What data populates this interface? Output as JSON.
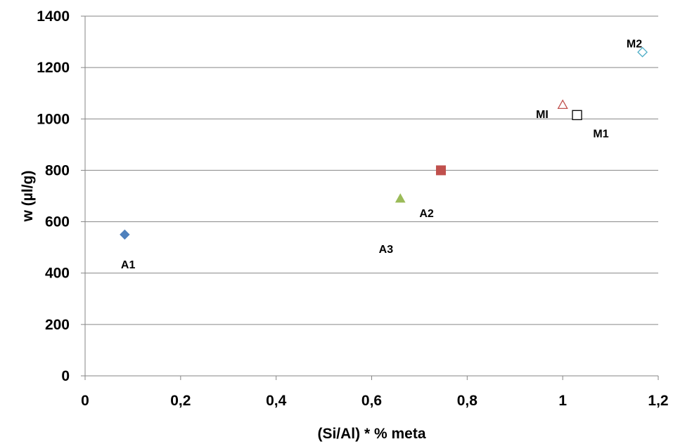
{
  "chart_data": {
    "type": "scatter",
    "title": "",
    "xlabel": "(Si/Al) * % meta",
    "ylabel": "w (µl/g)",
    "xlim": [
      0,
      1.2
    ],
    "ylim": [
      0,
      1400
    ],
    "x_ticks": [
      0,
      0.2,
      0.4,
      0.6,
      0.8,
      1.0,
      1.2
    ],
    "x_tick_labels": [
      "0",
      "0,2",
      "0,4",
      "0,6",
      "0,8",
      "1",
      "1,2"
    ],
    "y_ticks": [
      0,
      200,
      400,
      600,
      800,
      1000,
      1200,
      1400
    ],
    "y_tick_labels": [
      "0",
      "200",
      "400",
      "600",
      "800",
      "1000",
      "1200",
      "1400"
    ],
    "grid": "horizontal",
    "legend": "none",
    "points": [
      {
        "label": "A1",
        "x": 0.083,
        "y": 550,
        "marker": "diamond",
        "filled": true,
        "color": "#4f81bd",
        "label_pos": [
          0.09,
          435
        ]
      },
      {
        "label": "A3",
        "x": 0.66,
        "y": 690,
        "marker": "triangle",
        "filled": true,
        "color": "#9bbb59",
        "label_pos": [
          0.63,
          495
        ]
      },
      {
        "label": "A2",
        "x": 0.745,
        "y": 800,
        "marker": "square",
        "filled": true,
        "color": "#c0504d",
        "label_pos": [
          0.715,
          635
        ]
      },
      {
        "label": "MI",
        "x": 1.0,
        "y": 1055,
        "marker": "triangle",
        "filled": false,
        "color": "#c0504d",
        "label_pos": [
          0.957,
          1020
        ]
      },
      {
        "label": "M1",
        "x": 1.03,
        "y": 1015,
        "marker": "square",
        "filled": false,
        "color": "#000000",
        "label_pos": [
          1.08,
          945
        ]
      },
      {
        "label": "M2",
        "x": 1.167,
        "y": 1260,
        "marker": "diamond",
        "filled": false,
        "color": "#4bacc6",
        "label_pos": [
          1.15,
          1295
        ]
      }
    ]
  }
}
